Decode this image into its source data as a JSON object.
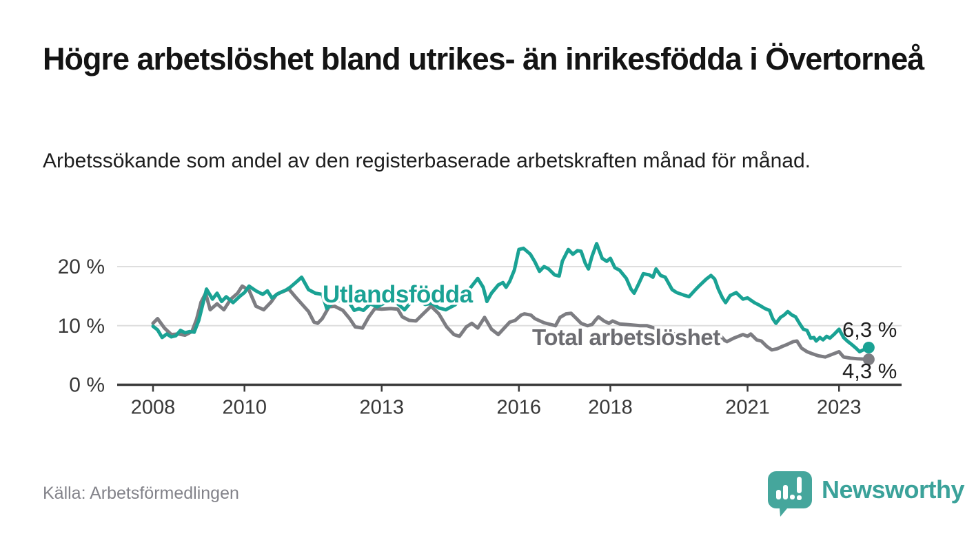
{
  "header": {
    "title": "Högre arbetslöshet bland utrikes- än inrikesfödda i Övertorneå",
    "subtitle": "Arbetssökande som andel av den registerbaserade arbetskraften månad för månad."
  },
  "footer": {
    "source": "Källa: Arbetsförmedlingen",
    "brand": "Newsworthy"
  },
  "colors": {
    "accent_teal": "#1aa294",
    "line_gray": "#7d7d82",
    "label_gray": "#6c6c71",
    "grid": "#dedede",
    "axis": "#3b3b3b",
    "tick_text": "#383838",
    "annotation_text": "#1f1f1f",
    "logo_teal": "#45a69c"
  },
  "chart_data": {
    "type": "line",
    "title": "",
    "xlabel": "",
    "ylabel": "",
    "grid": "horizontal",
    "legend_position": "inline-labels",
    "x_axis": {
      "range": [
        2007.2,
        2024.4
      ],
      "ticks": [
        {
          "value": 2008,
          "label": "2008"
        },
        {
          "value": 2010,
          "label": "2010"
        },
        {
          "value": 2013,
          "label": "2013"
        },
        {
          "value": 2016,
          "label": "2016"
        },
        {
          "value": 2018,
          "label": "2018"
        },
        {
          "value": 2021,
          "label": "2021"
        },
        {
          "value": 2023,
          "label": "2023"
        }
      ]
    },
    "y_axis": {
      "range": [
        0,
        25
      ],
      "unit": "%",
      "ticks": [
        {
          "value": 0,
          "label": "0 %"
        },
        {
          "value": 10,
          "label": "10 %"
        },
        {
          "value": 20,
          "label": "20 %"
        }
      ]
    },
    "series": [
      {
        "name": "Total arbetslöshet",
        "color": "#7d7d82",
        "label_color": "#6c6c71",
        "end_label": "4,3 %",
        "end_value": 4.3,
        "points": [
          [
            2008.0,
            10.4
          ],
          [
            2008.1,
            11.2
          ],
          [
            2008.25,
            9.6
          ],
          [
            2008.4,
            8.5
          ],
          [
            2008.55,
            8.6
          ],
          [
            2008.7,
            8.4
          ],
          [
            2008.85,
            9.0
          ],
          [
            2008.95,
            11.0
          ],
          [
            2009.05,
            14.0
          ],
          [
            2009.15,
            15.5
          ],
          [
            2009.25,
            12.7
          ],
          [
            2009.4,
            13.7
          ],
          [
            2009.55,
            12.7
          ],
          [
            2009.7,
            14.5
          ],
          [
            2009.85,
            15.5
          ],
          [
            2009.95,
            16.7
          ],
          [
            2010.1,
            16.0
          ],
          [
            2010.25,
            13.3
          ],
          [
            2010.42,
            12.7
          ],
          [
            2010.58,
            14.0
          ],
          [
            2010.7,
            15.3
          ],
          [
            2010.85,
            15.8
          ],
          [
            2010.97,
            16.2
          ],
          [
            2011.1,
            15.0
          ],
          [
            2011.25,
            13.7
          ],
          [
            2011.4,
            12.4
          ],
          [
            2011.52,
            10.6
          ],
          [
            2011.6,
            10.4
          ],
          [
            2011.7,
            11.2
          ],
          [
            2011.85,
            13.2
          ],
          [
            2011.97,
            13.3
          ],
          [
            2012.15,
            12.6
          ],
          [
            2012.3,
            11.2
          ],
          [
            2012.42,
            9.8
          ],
          [
            2012.58,
            9.6
          ],
          [
            2012.72,
            11.5
          ],
          [
            2012.85,
            12.9
          ],
          [
            2013.0,
            12.8
          ],
          [
            2013.2,
            12.9
          ],
          [
            2013.35,
            12.8
          ],
          [
            2013.45,
            11.5
          ],
          [
            2013.6,
            10.9
          ],
          [
            2013.75,
            10.8
          ],
          [
            2013.92,
            12.1
          ],
          [
            2014.08,
            13.3
          ],
          [
            2014.25,
            12.0
          ],
          [
            2014.42,
            9.8
          ],
          [
            2014.58,
            8.5
          ],
          [
            2014.7,
            8.2
          ],
          [
            2014.85,
            9.8
          ],
          [
            2014.97,
            10.4
          ],
          [
            2015.1,
            9.6
          ],
          [
            2015.25,
            11.4
          ],
          [
            2015.4,
            9.4
          ],
          [
            2015.55,
            8.5
          ],
          [
            2015.8,
            10.6
          ],
          [
            2015.92,
            10.9
          ],
          [
            2016.05,
            11.8
          ],
          [
            2016.12,
            12.0
          ],
          [
            2016.26,
            11.8
          ],
          [
            2016.35,
            11.2
          ],
          [
            2016.55,
            10.5
          ],
          [
            2016.8,
            10.0
          ],
          [
            2016.9,
            11.4
          ],
          [
            2017.03,
            12.0
          ],
          [
            2017.14,
            12.1
          ],
          [
            2017.26,
            11.2
          ],
          [
            2017.36,
            10.4
          ],
          [
            2017.5,
            10.0
          ],
          [
            2017.6,
            10.2
          ],
          [
            2017.67,
            10.9
          ],
          [
            2017.74,
            11.5
          ],
          [
            2017.86,
            10.8
          ],
          [
            2017.97,
            10.4
          ],
          [
            2018.05,
            10.8
          ],
          [
            2018.2,
            10.3
          ],
          [
            2018.35,
            10.2
          ],
          [
            2018.5,
            10.1
          ],
          [
            2018.65,
            10.0
          ],
          [
            2018.8,
            10.0
          ],
          [
            2019.0,
            9.5
          ],
          [
            2019.2,
            9.0
          ],
          [
            2019.4,
            8.6
          ],
          [
            2019.6,
            8.3
          ],
          [
            2019.8,
            8.0
          ],
          [
            2020.0,
            8.0
          ],
          [
            2020.2,
            8.6
          ],
          [
            2020.35,
            8.8
          ],
          [
            2020.5,
            7.5
          ],
          [
            2020.55,
            7.3
          ],
          [
            2020.7,
            7.9
          ],
          [
            2020.8,
            8.2
          ],
          [
            2020.9,
            8.5
          ],
          [
            2021.0,
            8.2
          ],
          [
            2021.07,
            8.6
          ],
          [
            2021.2,
            7.6
          ],
          [
            2021.3,
            7.4
          ],
          [
            2021.42,
            6.5
          ],
          [
            2021.53,
            5.9
          ],
          [
            2021.65,
            6.1
          ],
          [
            2021.76,
            6.5
          ],
          [
            2021.86,
            6.8
          ],
          [
            2022.0,
            7.3
          ],
          [
            2022.08,
            7.4
          ],
          [
            2022.18,
            6.2
          ],
          [
            2022.3,
            5.6
          ],
          [
            2022.4,
            5.3
          ],
          [
            2022.55,
            4.9
          ],
          [
            2022.7,
            4.7
          ],
          [
            2022.9,
            5.3
          ],
          [
            2023.0,
            5.6
          ],
          [
            2023.1,
            4.7
          ],
          [
            2023.25,
            4.5
          ],
          [
            2023.4,
            4.4
          ],
          [
            2023.65,
            4.3
          ]
        ]
      },
      {
        "name": "Utlandsfödda",
        "color": "#1aa294",
        "label_color": "#1aa294",
        "end_label": "6,3 %",
        "end_value": 6.3,
        "points": [
          [
            2008.0,
            9.9
          ],
          [
            2008.1,
            9.3
          ],
          [
            2008.2,
            8.0
          ],
          [
            2008.3,
            8.6
          ],
          [
            2008.4,
            8.1
          ],
          [
            2008.5,
            8.3
          ],
          [
            2008.6,
            9.2
          ],
          [
            2008.7,
            8.8
          ],
          [
            2008.8,
            9.0
          ],
          [
            2008.9,
            8.9
          ],
          [
            2009.0,
            10.9
          ],
          [
            2009.1,
            14.0
          ],
          [
            2009.17,
            16.2
          ],
          [
            2009.3,
            14.5
          ],
          [
            2009.4,
            15.5
          ],
          [
            2009.5,
            14.1
          ],
          [
            2009.6,
            14.9
          ],
          [
            2009.75,
            13.9
          ],
          [
            2009.9,
            15.0
          ],
          [
            2010.0,
            15.6
          ],
          [
            2010.1,
            16.7
          ],
          [
            2010.25,
            15.9
          ],
          [
            2010.4,
            15.3
          ],
          [
            2010.5,
            15.9
          ],
          [
            2010.6,
            14.7
          ],
          [
            2010.75,
            15.5
          ],
          [
            2010.9,
            16.0
          ],
          [
            2011.0,
            16.5
          ],
          [
            2011.15,
            17.5
          ],
          [
            2011.25,
            18.2
          ],
          [
            2011.4,
            16.1
          ],
          [
            2011.55,
            15.5
          ],
          [
            2011.7,
            15.3
          ],
          [
            2011.8,
            12.9
          ],
          [
            2011.95,
            14.1
          ],
          [
            2012.1,
            14.3
          ],
          [
            2012.25,
            14.4
          ],
          [
            2012.4,
            12.6
          ],
          [
            2012.5,
            12.9
          ],
          [
            2012.6,
            12.6
          ],
          [
            2012.75,
            13.7
          ],
          [
            2012.9,
            13.2
          ],
          [
            2013.05,
            13.8
          ],
          [
            2013.2,
            14.1
          ],
          [
            2013.35,
            13.7
          ],
          [
            2013.5,
            12.7
          ],
          [
            2013.65,
            14.1
          ],
          [
            2013.8,
            14.3
          ],
          [
            2013.95,
            13.6
          ],
          [
            2014.1,
            13.8
          ],
          [
            2014.25,
            13.0
          ],
          [
            2014.4,
            12.7
          ],
          [
            2014.6,
            13.5
          ],
          [
            2014.8,
            15.1
          ],
          [
            2014.95,
            16.5
          ],
          [
            2015.1,
            18.0
          ],
          [
            2015.22,
            16.5
          ],
          [
            2015.3,
            14.1
          ],
          [
            2015.4,
            15.5
          ],
          [
            2015.55,
            16.9
          ],
          [
            2015.65,
            17.3
          ],
          [
            2015.72,
            16.5
          ],
          [
            2015.8,
            17.5
          ],
          [
            2015.9,
            19.4
          ],
          [
            2016.0,
            22.9
          ],
          [
            2016.1,
            23.1
          ],
          [
            2016.25,
            22.1
          ],
          [
            2016.35,
            20.8
          ],
          [
            2016.45,
            19.2
          ],
          [
            2016.55,
            20.0
          ],
          [
            2016.65,
            19.6
          ],
          [
            2016.78,
            18.6
          ],
          [
            2016.88,
            18.4
          ],
          [
            2016.95,
            20.9
          ],
          [
            2017.08,
            22.9
          ],
          [
            2017.18,
            22.1
          ],
          [
            2017.28,
            22.7
          ],
          [
            2017.36,
            22.6
          ],
          [
            2017.45,
            20.6
          ],
          [
            2017.52,
            19.6
          ],
          [
            2017.6,
            21.8
          ],
          [
            2017.7,
            23.9
          ],
          [
            2017.82,
            21.4
          ],
          [
            2017.92,
            20.9
          ],
          [
            2018.0,
            21.4
          ],
          [
            2018.1,
            19.8
          ],
          [
            2018.2,
            19.4
          ],
          [
            2018.35,
            18.0
          ],
          [
            2018.45,
            16.2
          ],
          [
            2018.52,
            15.5
          ],
          [
            2018.62,
            17.1
          ],
          [
            2018.72,
            18.8
          ],
          [
            2018.85,
            18.6
          ],
          [
            2018.93,
            18.2
          ],
          [
            2019.0,
            19.6
          ],
          [
            2019.1,
            18.5
          ],
          [
            2019.2,
            18.2
          ],
          [
            2019.35,
            16.1
          ],
          [
            2019.45,
            15.6
          ],
          [
            2019.6,
            15.2
          ],
          [
            2019.72,
            14.9
          ],
          [
            2019.85,
            16.0
          ],
          [
            2019.95,
            16.8
          ],
          [
            2020.1,
            17.9
          ],
          [
            2020.2,
            18.5
          ],
          [
            2020.28,
            17.9
          ],
          [
            2020.36,
            16.2
          ],
          [
            2020.45,
            14.7
          ],
          [
            2020.52,
            13.9
          ],
          [
            2020.62,
            15.1
          ],
          [
            2020.75,
            15.6
          ],
          [
            2020.9,
            14.5
          ],
          [
            2021.0,
            14.7
          ],
          [
            2021.15,
            13.9
          ],
          [
            2021.25,
            13.5
          ],
          [
            2021.38,
            12.9
          ],
          [
            2021.48,
            12.6
          ],
          [
            2021.55,
            11.2
          ],
          [
            2021.62,
            10.4
          ],
          [
            2021.72,
            11.4
          ],
          [
            2021.8,
            11.8
          ],
          [
            2021.88,
            12.4
          ],
          [
            2021.97,
            11.8
          ],
          [
            2022.05,
            11.5
          ],
          [
            2022.15,
            10.2
          ],
          [
            2022.22,
            9.4
          ],
          [
            2022.3,
            9.2
          ],
          [
            2022.38,
            7.9
          ],
          [
            2022.45,
            8.0
          ],
          [
            2022.5,
            7.4
          ],
          [
            2022.58,
            8.0
          ],
          [
            2022.65,
            7.6
          ],
          [
            2022.73,
            8.2
          ],
          [
            2022.8,
            7.9
          ],
          [
            2022.9,
            8.6
          ],
          [
            2023.0,
            9.4
          ],
          [
            2023.1,
            8.0
          ],
          [
            2023.18,
            7.4
          ],
          [
            2023.28,
            6.8
          ],
          [
            2023.37,
            6.2
          ],
          [
            2023.45,
            5.6
          ],
          [
            2023.53,
            5.9
          ],
          [
            2023.65,
            6.3
          ]
        ]
      }
    ]
  }
}
